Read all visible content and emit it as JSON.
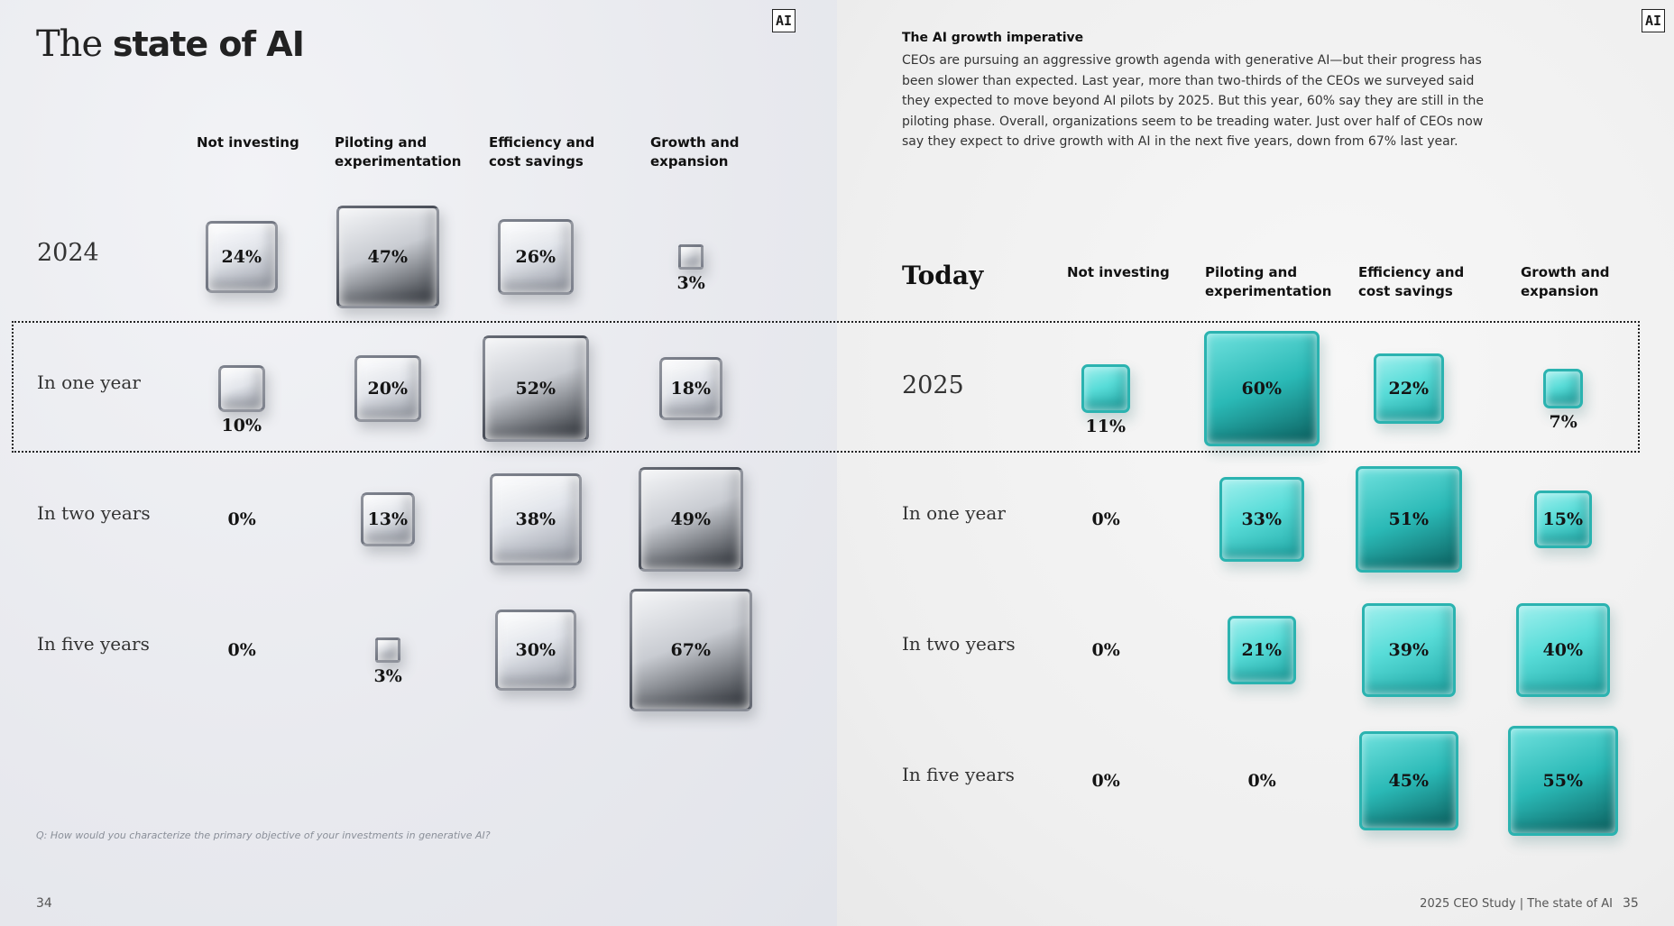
{
  "badge": "AI",
  "left": {
    "title_light": "The",
    "title_bold": "state of AI",
    "columns": [
      "Not investing",
      "Piloting and\nexperimentation",
      "Efficiency and\ncost savings",
      "Growth and\nexpansion"
    ],
    "rows": [
      "2024",
      "In one year",
      "In two years",
      "In five years"
    ],
    "footnote": "Q: How would you characterize the primary objective of your investments in generative AI?",
    "page_number": "34"
  },
  "right": {
    "heading": "The AI growth imperative",
    "body": "CEOs are pursuing an aggressive growth agenda with generative AI—but their progress has been slower than expected. Last year, more than two-thirds of the CEOs we surveyed said they expected to move beyond AI pilots by 2025. But this year, 60% say they are still in the piloting phase. Overall, organizations seem to be treading water. Just over half of CEOs now say they expect to drive growth with AI in the next five years, down from 67% last year.",
    "corner_label": "Today",
    "columns": [
      "Not investing",
      "Piloting and\nexperimentation",
      "Efficiency and\ncost savings",
      "Growth and\nexpansion"
    ],
    "rows": [
      "2025",
      "In one year",
      "In two years",
      "In five years"
    ],
    "footer": "2025 CEO Study | The state of AI",
    "page_number": "35"
  },
  "colors": {
    "clear_cube": "#c9ccd2",
    "teal_cube": "#3fd0cd",
    "text": "#1a1a1a"
  },
  "chart_data": [
    {
      "type": "table",
      "title": "The state of AI",
      "row_label": "",
      "rows": [
        "2024",
        "In one year",
        "In two years",
        "In five years"
      ],
      "columns": [
        "Not investing",
        "Piloting and experimentation",
        "Efficiency and cost savings",
        "Growth and expansion"
      ],
      "values": [
        [
          24,
          47,
          26,
          3
        ],
        [
          10,
          20,
          52,
          18
        ],
        [
          0,
          13,
          38,
          49
        ],
        [
          0,
          3,
          30,
          67
        ]
      ],
      "labels": [
        [
          "24%",
          "47%",
          "26%",
          "3%"
        ],
        [
          "10%",
          "20%",
          "52%",
          "18%"
        ],
        [
          "0%",
          "13%",
          "38%",
          "49%"
        ],
        [
          "0%",
          "3%",
          "30%",
          "67%"
        ]
      ],
      "unit": "%"
    },
    {
      "type": "table",
      "title": "",
      "row_label": "Today",
      "rows": [
        "2025",
        "In one year",
        "In two years",
        "In five years"
      ],
      "columns": [
        "Not investing",
        "Piloting and experimentation",
        "Efficiency and cost savings",
        "Growth and expansion"
      ],
      "values": [
        [
          11,
          60,
          22,
          7
        ],
        [
          0,
          33,
          51,
          15
        ],
        [
          0,
          21,
          39,
          40
        ],
        [
          0,
          0,
          45,
          55
        ]
      ],
      "labels": [
        [
          "11%",
          "60%",
          "22%",
          "7%"
        ],
        [
          "0%",
          "33%",
          "51%",
          "15%"
        ],
        [
          "0%",
          "21%",
          "39%",
          "40%"
        ],
        [
          "0%",
          "0%",
          "45%",
          "55%"
        ]
      ],
      "unit": "%"
    }
  ]
}
